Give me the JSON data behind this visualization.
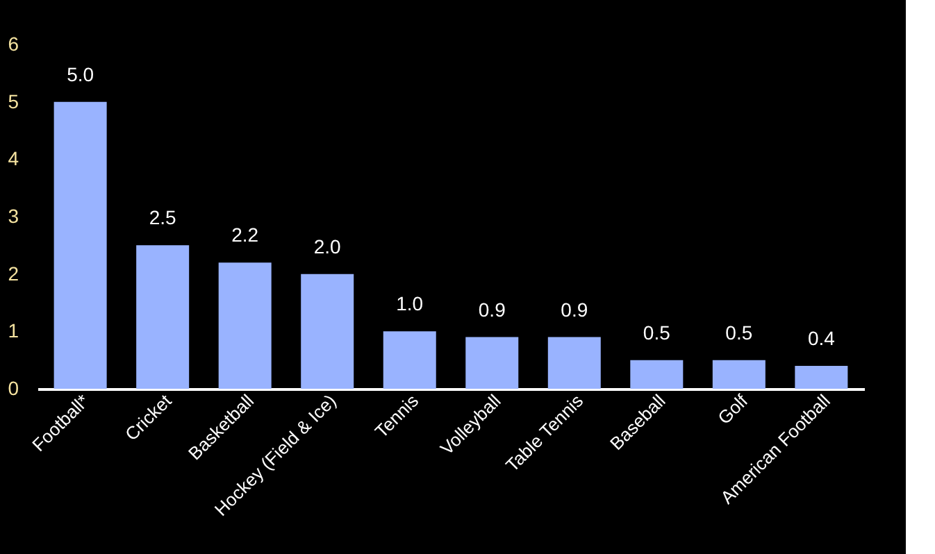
{
  "chart_data": {
    "type": "bar",
    "categories": [
      "Football*",
      "Cricket",
      "Basketball",
      "Hockey (Field & Ice)",
      "Tennis",
      "Volleyball",
      "Table Tennis",
      "Baseball",
      "Golf",
      "American Football"
    ],
    "values": [
      5.0,
      2.5,
      2.2,
      2.0,
      1.0,
      0.9,
      0.9,
      0.5,
      0.5,
      0.4
    ],
    "color": "#99b3ff",
    "value_labels": [
      "5.0",
      "2.5",
      "2.2",
      "2.0",
      "1.0",
      "0.9",
      "0.9",
      "0.5",
      "0.5",
      "0.4"
    ],
    "ylim": [
      0,
      6
    ],
    "yticks": [
      0,
      1,
      2,
      3,
      4,
      5,
      6
    ],
    "grid": false
  }
}
